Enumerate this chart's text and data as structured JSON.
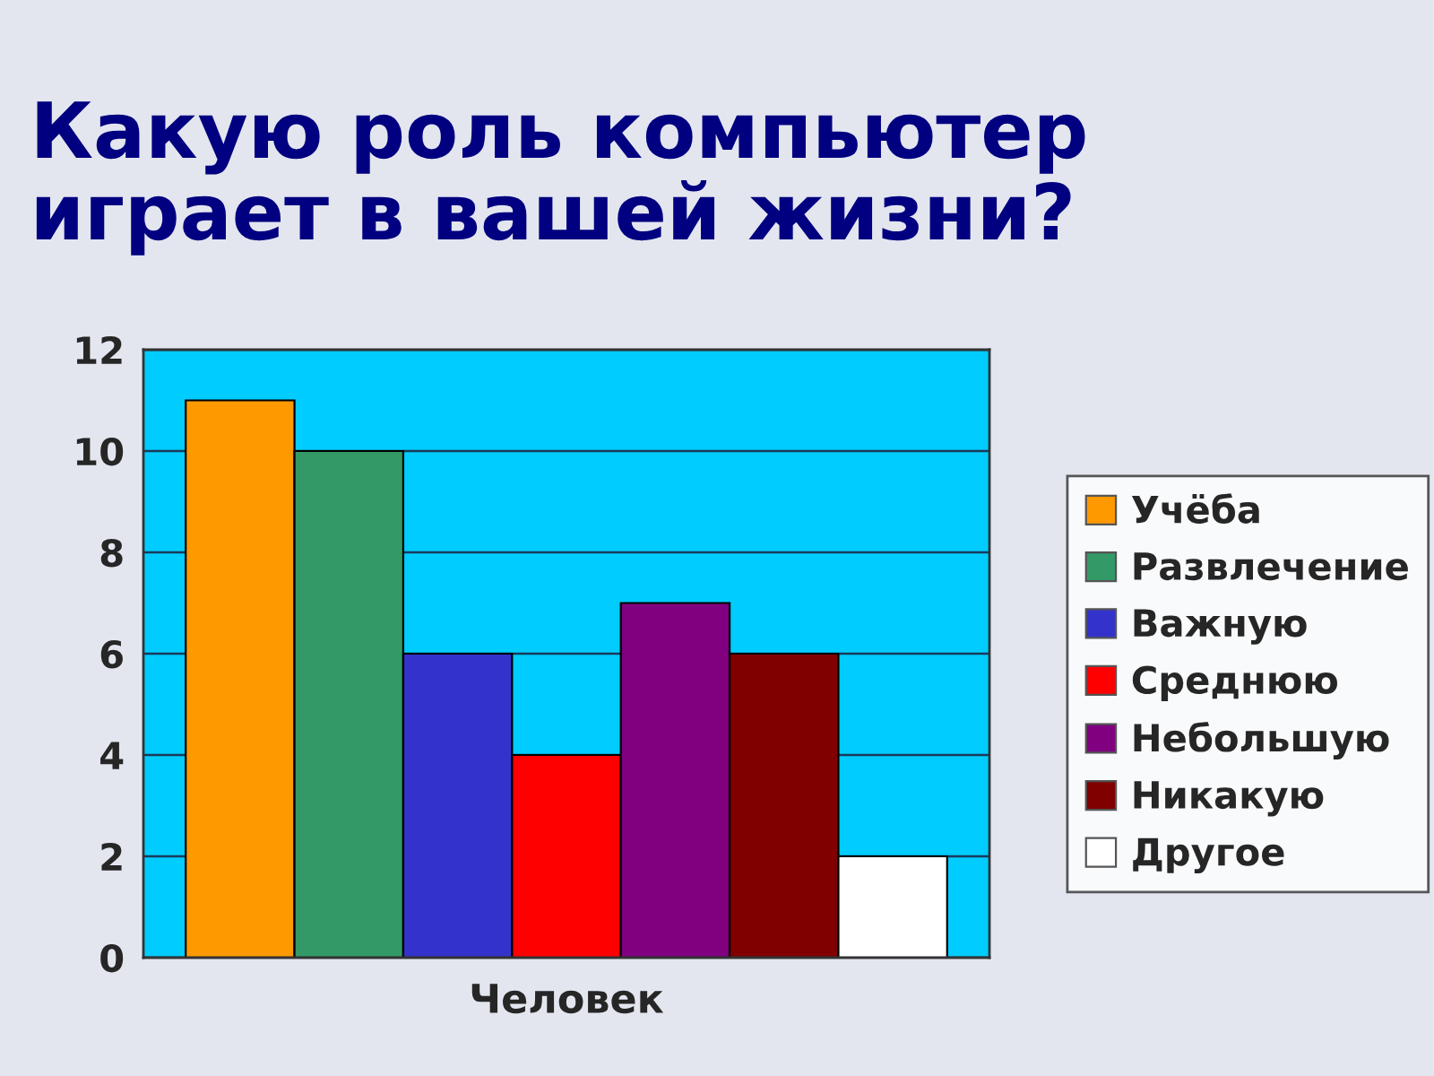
{
  "chart_data": {
    "type": "bar",
    "title": "Какую роль компьютер играет в вашей жизни?",
    "categories": [
      "Человек"
    ],
    "series": [
      {
        "name": "Учёба",
        "color": "#ff9900",
        "values": [
          11
        ]
      },
      {
        "name": "Развлечение",
        "color": "#339966",
        "values": [
          10
        ]
      },
      {
        "name": "Важную",
        "color": "#3333cc",
        "values": [
          6
        ]
      },
      {
        "name": "Среднюю",
        "color": "#ff0000",
        "values": [
          4
        ]
      },
      {
        "name": "Небольшую",
        "color": "#800080",
        "values": [
          7
        ]
      },
      {
        "name": "Никакую",
        "color": "#800000",
        "values": [
          6
        ]
      },
      {
        "name": "Другое",
        "color": "#ffffff",
        "values": [
          2
        ]
      }
    ],
    "ylim": [
      0,
      12
    ],
    "yticks": [
      0,
      2,
      4,
      6,
      8,
      10,
      12
    ],
    "grid": "y",
    "legend": "right"
  }
}
